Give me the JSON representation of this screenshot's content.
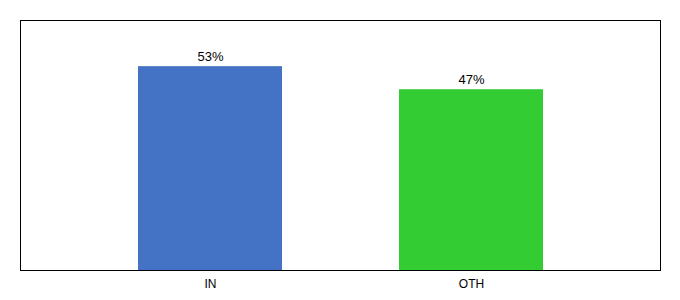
{
  "chart_data": {
    "type": "bar",
    "categories": [
      "IN",
      "OTH"
    ],
    "values": [
      53,
      47
    ],
    "value_labels": [
      "53%",
      "47%"
    ],
    "colors": [
      "#4472c4",
      "#33cc33"
    ],
    "ylim": [
      0,
      65
    ],
    "grid": false,
    "data_labels": true,
    "tick_labels": "x"
  }
}
